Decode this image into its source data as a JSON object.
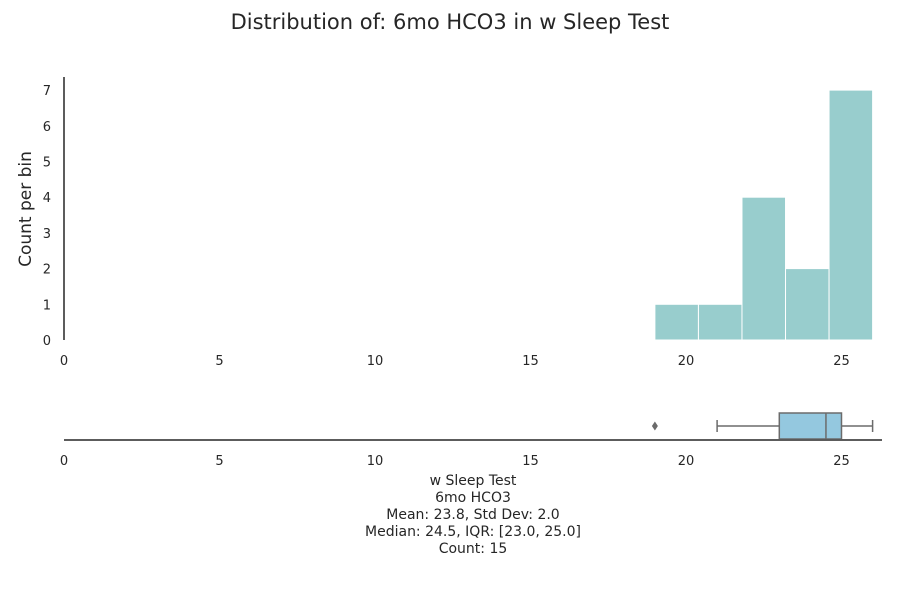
{
  "chart_data": {
    "title": "Distribution of: 6mo HCO3 in w Sleep Test",
    "colors": {
      "histogram": "#98cdcd",
      "box": "#94c8df",
      "axis": "#262626",
      "whisker": "#6b6b6b"
    },
    "histogram": {
      "type": "bar",
      "ylabel": "Count per bin",
      "xlim": [
        0,
        26.3
      ],
      "ylim": [
        0,
        7.3
      ],
      "xticks": [
        "0",
        "5",
        "10",
        "15",
        "20",
        "25"
      ],
      "yticks": [
        "0",
        "1",
        "2",
        "3",
        "4",
        "5",
        "6",
        "7"
      ],
      "bin_edges": [
        19.0,
        20.4,
        21.8,
        23.2,
        24.6,
        26.0
      ],
      "counts": [
        1,
        1,
        4,
        2,
        7
      ]
    },
    "boxplot": {
      "type": "box",
      "xlim": [
        0,
        26.3
      ],
      "xticks": [
        "0",
        "5",
        "10",
        "15",
        "20",
        "25"
      ],
      "whisker_low": 21.0,
      "q1": 23.0,
      "median": 24.5,
      "q3": 25.0,
      "whisker_high": 26.0,
      "outliers": [
        19.0
      ]
    },
    "stats_lines": [
      "w Sleep Test",
      "6mo HCO3",
      "Mean: 23.8, Std Dev: 2.0",
      "Median: 24.5, IQR: [23.0, 25.0]",
      "Count: 15"
    ]
  }
}
